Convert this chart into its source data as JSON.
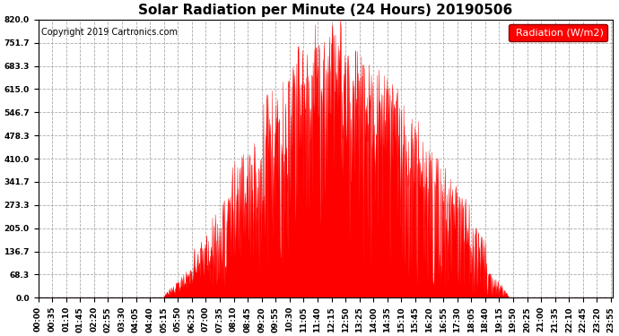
{
  "title": "Solar Radiation per Minute (24 Hours) 20190506",
  "copyright_text": "Copyright 2019 Cartronics.com",
  "legend_label": "Radiation (W/m2)",
  "ylabel_values": [
    0.0,
    68.3,
    136.7,
    205.0,
    273.3,
    341.7,
    410.0,
    478.3,
    546.7,
    615.0,
    683.3,
    751.7,
    820.0
  ],
  "ymax": 820.0,
  "ymin": 0.0,
  "fill_color": "#FF0000",
  "line_color": "#FF0000",
  "background_color": "#FFFFFF",
  "grid_color": "#AAAAAA",
  "title_fontsize": 11,
  "tick_label_fontsize": 6.5,
  "copyright_fontsize": 7,
  "legend_fontsize": 8,
  "total_minutes": 1440,
  "tick_interval": 35
}
